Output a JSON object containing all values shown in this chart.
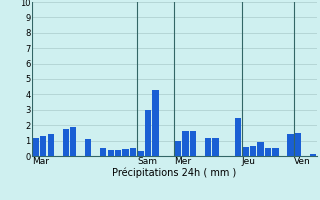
{
  "xlabel": "Précipitations 24h ( mm )",
  "ylim": [
    0,
    10
  ],
  "yticks": [
    0,
    1,
    2,
    3,
    4,
    5,
    6,
    7,
    8,
    9,
    10
  ],
  "background_color": "#cff0f0",
  "bar_color": "#1a5fd4",
  "grid_color": "#aacccc",
  "vline_color": "#336666",
  "day_labels": [
    "Mar",
    "Sam",
    "Mer",
    "Jeu",
    "Ven"
  ],
  "day_boundaries": [
    0,
    14,
    19,
    28,
    35,
    38
  ],
  "bars": [
    1.2,
    1.3,
    1.4,
    0.0,
    1.75,
    1.9,
    0.0,
    1.1,
    0.0,
    0.5,
    0.4,
    0.4,
    0.45,
    0.5,
    0.35,
    3.0,
    4.3,
    0.0,
    0.0,
    1.0,
    1.6,
    1.65,
    0.0,
    1.2,
    1.2,
    0.0,
    0.0,
    2.5,
    0.6,
    0.65,
    0.9,
    0.5,
    0.55,
    0.0,
    1.4,
    1.5,
    0.0,
    0.1
  ],
  "bar_width": 0.85,
  "figsize": [
    3.2,
    2.0
  ],
  "dpi": 100
}
